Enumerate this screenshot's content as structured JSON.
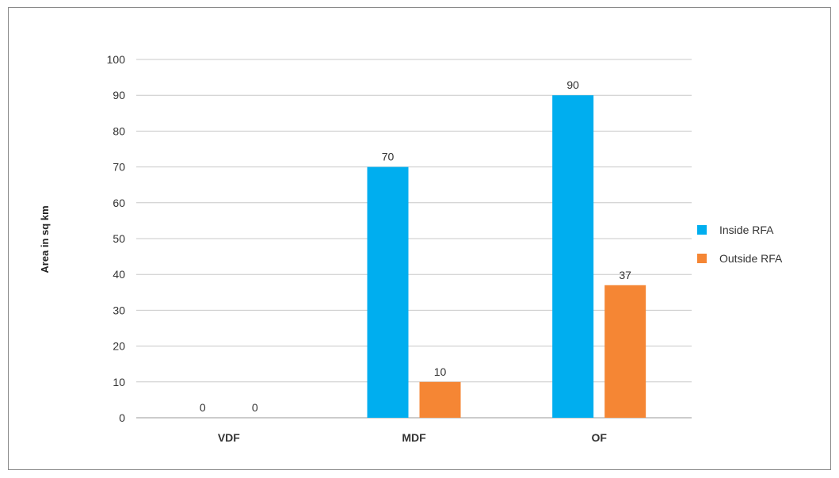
{
  "chart_data": {
    "type": "bar",
    "categories": [
      "VDF",
      "MDF",
      "OF"
    ],
    "series": [
      {
        "name": "Inside RFA",
        "values": [
          0,
          70,
          90
        ],
        "color": "#00aeef"
      },
      {
        "name": "Outside RFA",
        "values": [
          0,
          10,
          37
        ],
        "color": "#f58634"
      }
    ],
    "data_labels": [
      [
        "0",
        "70",
        "90"
      ],
      [
        "0",
        "10",
        "37"
      ]
    ],
    "title": "",
    "xlabel": "",
    "ylabel": "Area in sq km",
    "ylim": [
      0,
      100
    ],
    "yticks": [
      "0",
      "10",
      "20",
      "30",
      "40",
      "50",
      "60",
      "70",
      "80",
      "90",
      "100"
    ],
    "grid": true,
    "legend_position": "right"
  }
}
